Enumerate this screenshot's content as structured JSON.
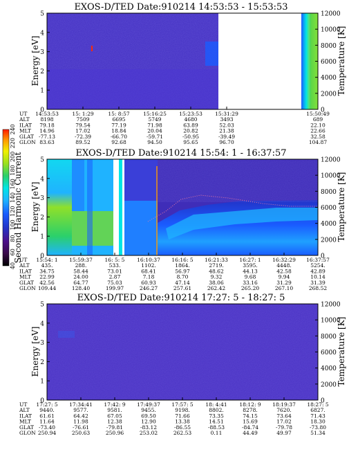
{
  "chart_data": [
    {
      "type": "heatmap",
      "title": "EXOS-D/TED   Date:910214  14:53:53 - 15:53:53",
      "ylabel": "Energy [eV]",
      "y2label": "Temperature [K]",
      "ylim": [
        0,
        5
      ],
      "y2lim": [
        0,
        12000
      ],
      "yticks": [
        "0",
        "1",
        "2",
        "3",
        "4",
        "5"
      ],
      "y2ticks": [
        "0",
        "2000",
        "4000",
        "6000",
        "8000",
        "10000",
        "12000"
      ],
      "orbit_labels": [
        "UT",
        "ALT",
        "ILAT",
        "MLT",
        "GLAT",
        "GLON"
      ],
      "orbit_columns": [
        [
          "14:53:53",
          "8198",
          "79.18",
          "14.96",
          "-77.13",
          "83.63"
        ],
        [
          "15: 1:29",
          "7509",
          "79.54",
          "17.02",
          "-72.39",
          "89.52"
        ],
        [
          "15: 8:57",
          "6695",
          "77.19",
          "18.84",
          "-66.70",
          "92.68"
        ],
        [
          "15:16:25",
          "5749",
          "71.98",
          "20.04",
          "-59.71",
          "94.50"
        ],
        [
          "15:23:53",
          "4680",
          "63.89",
          "20.82",
          "-50.95",
          "95.65"
        ],
        [
          "15:31:29",
          "3493",
          "52.03",
          "21.38",
          "-39.49",
          "96.70"
        ],
        [
          "15:50:49",
          "689",
          "22.10",
          "22.66",
          "32.58",
          "104.87"
        ]
      ]
    },
    {
      "type": "heatmap",
      "title": "EXOS-D/TED   Date:910214  15:54: 1 - 16:37:57",
      "ylabel": "Energy [eV]",
      "y2label": "Temperature [K]",
      "ylim": [
        0,
        5
      ],
      "y2lim": [
        0,
        12000
      ],
      "yticks": [
        "0",
        "1",
        "2",
        "3",
        "4",
        "5"
      ],
      "y2ticks": [
        "0",
        "2000",
        "4000",
        "6000",
        "8000",
        "10000",
        "12000"
      ],
      "orbit_labels": [
        "UT",
        "ALT",
        "ILAT",
        "MLT",
        "GLAT",
        "GLON"
      ],
      "orbit_columns": [
        [
          "15:54: 1",
          "435.",
          "34.75",
          "22.99",
          "42.56",
          "109.44"
        ],
        [
          "15:59:37",
          "288.",
          "58.44",
          "24.00",
          "64.77",
          "128.40"
        ],
        [
          "16: 5: 5",
          "533.",
          "73.01",
          "2.87",
          "75.03",
          "199.97"
        ],
        [
          "16:10:37",
          "1102.",
          "68.41",
          "7.18",
          "60.93",
          "246.27"
        ],
        [
          "16:16: 5",
          "1864.",
          "56.97",
          "8.70",
          "47.14",
          "257.61"
        ],
        [
          "16:21:33",
          "2719.",
          "48.62",
          "9.32",
          "38.06",
          "262.42"
        ],
        [
          "16:27: 1",
          "3595.",
          "44.13",
          "9.68",
          "33.16",
          "265.20"
        ],
        [
          "16:32:29",
          "4448.",
          "42.58",
          "9.94",
          "31.29",
          "267.10"
        ],
        [
          "16:37:57",
          "5254.",
          "42.89",
          "10.14",
          "31.39",
          "268.52"
        ]
      ]
    },
    {
      "type": "heatmap",
      "title": "EXOS-D/TED   Date:910214  17:27: 5 - 18:27: 5",
      "ylabel": "Energy [eV]",
      "y2label": "Temperature [K]",
      "ylim": [
        0,
        5
      ],
      "y2lim": [
        0,
        12000
      ],
      "yticks": [
        "0",
        "1",
        "2",
        "3",
        "4",
        "5"
      ],
      "y2ticks": [
        "0",
        "2000",
        "4000",
        "6000",
        "8000",
        "10000",
        "12000"
      ],
      "orbit_labels": [
        "UT",
        "ALT",
        "ILAT",
        "MLT",
        "GLAT",
        "GLON"
      ],
      "orbit_columns": [
        [
          "17:27: 5",
          "9440.",
          "61.61",
          "11.64",
          "-73.40",
          "250.94"
        ],
        [
          "17:34:41",
          "9577.",
          "64.42",
          "11.98",
          "-76.61",
          "250.63"
        ],
        [
          "17:42: 9",
          "9581.",
          "67.05",
          "12.38",
          "-79.81",
          "250.96"
        ],
        [
          "17:49:37",
          "9455.",
          "69.50",
          "12.90",
          "-83.12",
          "253.02"
        ],
        [
          "17:57: 5",
          "9198.",
          "71.66",
          "13.38",
          "-86.55",
          "262.53"
        ],
        [
          "18: 4:41",
          "8802.",
          "73.35",
          "14.51",
          "-88.53",
          "0.11"
        ],
        [
          "18:12: 9",
          "8278.",
          "74.15",
          "15.69",
          "-84.74",
          "44.49"
        ],
        [
          "18:19:37",
          "7620.",
          "73.64",
          "17.02",
          "-79.78",
          "49.97"
        ],
        [
          "18:27: 5",
          "6827.",
          "71.43",
          "18.30",
          "-73.80",
          "51.34"
        ]
      ]
    }
  ],
  "colorbar": {
    "label": "Second Harmonic Current",
    "ticks": [
      "40",
      "60",
      "80",
      "100",
      "120",
      "140",
      "160",
      "180",
      "200",
      "220",
      "240"
    ],
    "colors": [
      "#000000",
      "#3a0a4a",
      "#4b0f8a",
      "#2233c8",
      "#1a5cff",
      "#1fb3ff",
      "#00e5e5",
      "#2bd06a",
      "#9be01e",
      "#f0f000",
      "#ff9b00",
      "#ff1a00"
    ]
  }
}
